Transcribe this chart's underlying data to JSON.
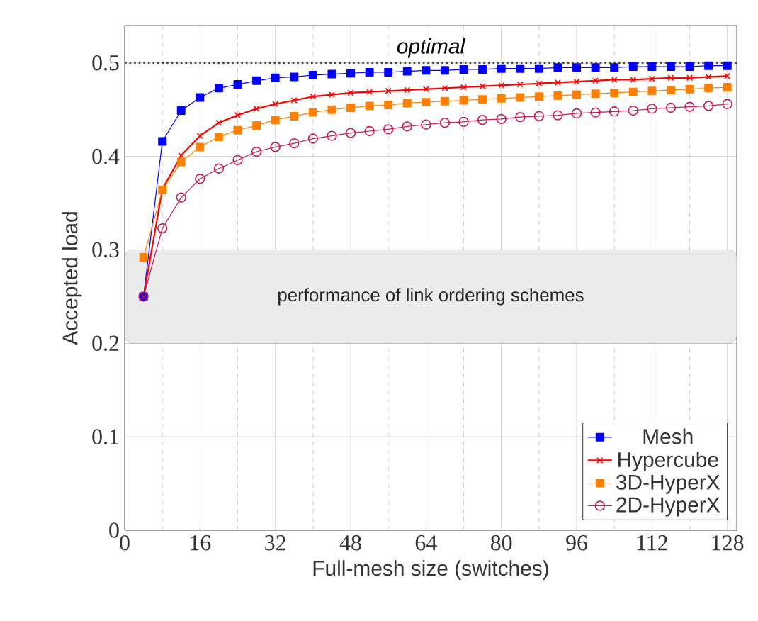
{
  "chart_data": {
    "type": "line",
    "xlabel": "Full-mesh size (switches)",
    "ylabel": "Accepted load",
    "x": [
      4,
      8,
      12,
      16,
      20,
      24,
      28,
      32,
      36,
      40,
      44,
      48,
      52,
      56,
      60,
      64,
      68,
      72,
      76,
      80,
      84,
      88,
      92,
      96,
      100,
      104,
      108,
      112,
      116,
      120,
      124,
      128
    ],
    "series": [
      {
        "name": "Mesh",
        "color": "#0000ff",
        "marker": "square",
        "values": [
          0.25,
          0.416,
          0.449,
          0.463,
          0.473,
          0.477,
          0.481,
          0.484,
          0.485,
          0.487,
          0.488,
          0.489,
          0.49,
          0.49,
          0.491,
          0.492,
          0.492,
          0.493,
          0.493,
          0.494,
          0.494,
          0.494,
          0.495,
          0.495,
          0.495,
          0.495,
          0.496,
          0.496,
          0.496,
          0.496,
          0.497,
          0.497
        ]
      },
      {
        "name": "Hypercube",
        "color": "#ff0000",
        "marker": "cross",
        "values": [
          0.25,
          0.365,
          0.401,
          0.422,
          0.436,
          0.444,
          0.451,
          0.456,
          0.46,
          0.464,
          0.466,
          0.468,
          0.469,
          0.47,
          0.471,
          0.472,
          0.473,
          0.474,
          0.475,
          0.476,
          0.477,
          0.478,
          0.479,
          0.48,
          0.481,
          0.482,
          0.482,
          0.483,
          0.484,
          0.484,
          0.485,
          0.486
        ]
      },
      {
        "name": "3D-HyperX",
        "color": "#ff8000",
        "marker": "square",
        "values": [
          0.292,
          0.364,
          0.394,
          0.41,
          0.421,
          0.428,
          0.433,
          0.439,
          0.443,
          0.447,
          0.45,
          0.452,
          0.454,
          0.455,
          0.457,
          0.458,
          0.459,
          0.46,
          0.461,
          0.462,
          0.463,
          0.464,
          0.465,
          0.466,
          0.467,
          0.468,
          0.469,
          0.47,
          0.471,
          0.472,
          0.473,
          0.474
        ]
      },
      {
        "name": "2D-HyperX",
        "color": "#c8185a",
        "marker": "circle",
        "values": [
          0.25,
          0.323,
          0.356,
          0.376,
          0.387,
          0.396,
          0.405,
          0.41,
          0.414,
          0.419,
          0.422,
          0.425,
          0.427,
          0.429,
          0.432,
          0.434,
          0.436,
          0.437,
          0.439,
          0.44,
          0.442,
          0.443,
          0.444,
          0.446,
          0.447,
          0.448,
          0.449,
          0.451,
          0.452,
          0.453,
          0.454,
          0.456
        ]
      }
    ],
    "xlim": [
      0,
      130
    ],
    "ylim": [
      0,
      0.54
    ],
    "xticks": [
      0,
      {
        "value": 8,
        "label": null
      },
      16,
      {
        "value": 24,
        "label": null
      },
      32,
      {
        "value": 40,
        "label": null
      },
      48,
      {
        "value": 56,
        "label": null
      },
      64,
      {
        "value": 72,
        "label": null
      },
      80,
      {
        "value": 88,
        "label": null
      },
      96,
      {
        "value": 104,
        "label": null
      },
      112,
      {
        "value": 120,
        "label": null
      },
      128
    ],
    "yticks": [
      0,
      0.1,
      0.2,
      0.3,
      0.4,
      0.5
    ],
    "ref_lines": [
      {
        "axis": "y",
        "value": 0.5,
        "label": "optimal",
        "color": "#444444",
        "line_style": "dotted"
      }
    ],
    "bands": [
      {
        "axis": "y",
        "from": 0.2,
        "to": 0.3,
        "label": "performance of link ordering schemes",
        "color": "#ebebeb"
      }
    ],
    "grid": true,
    "legend": "bottom right"
  }
}
